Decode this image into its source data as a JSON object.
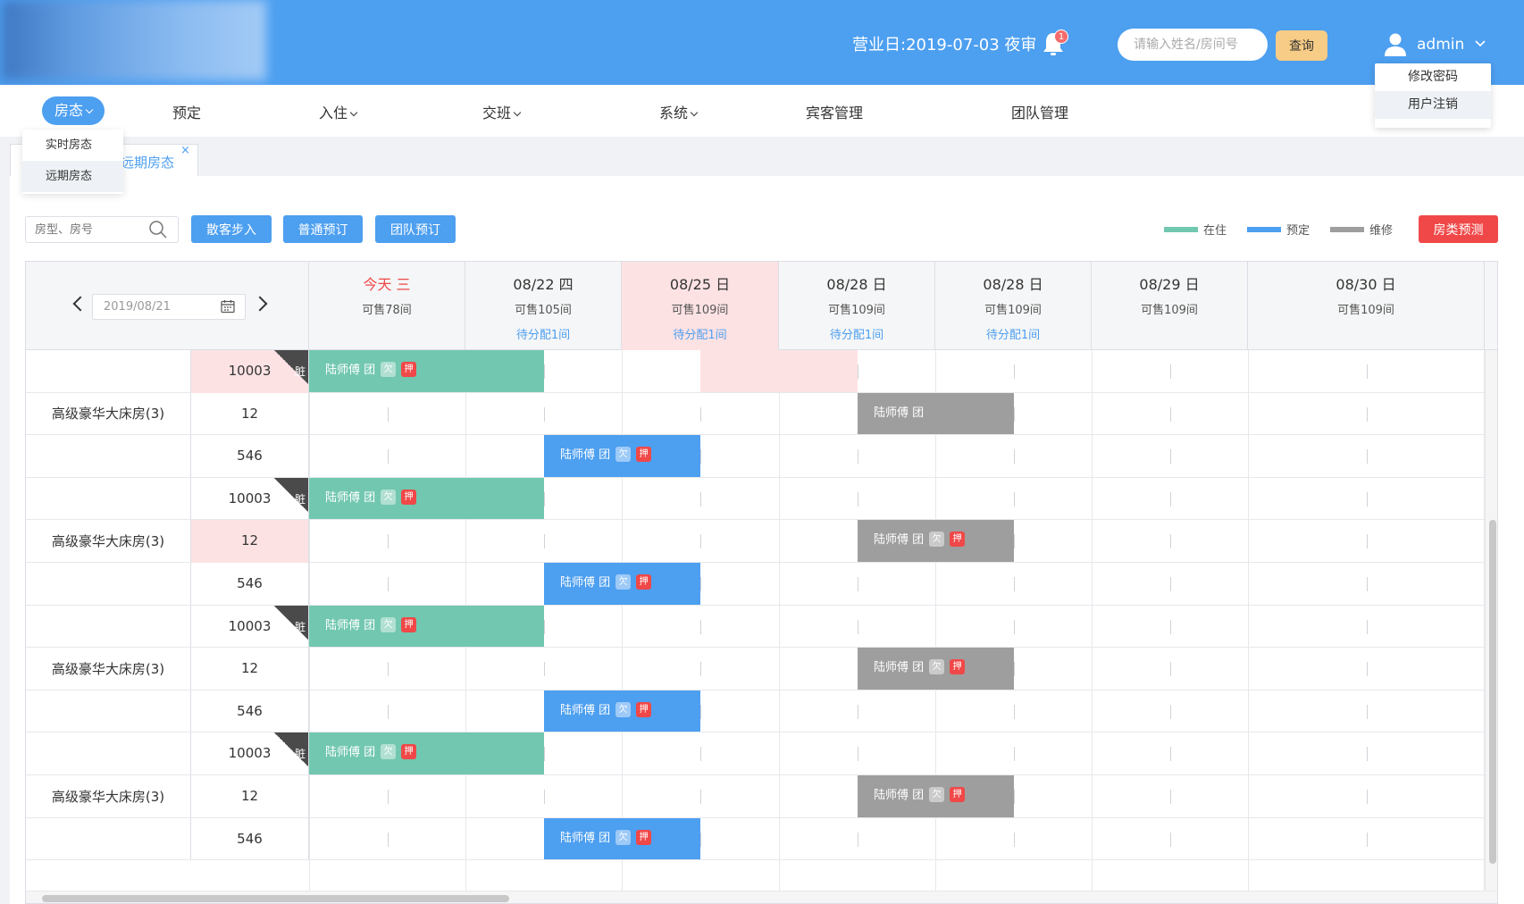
{
  "header": {
    "business_day": "营业日:2019-07-03 夜审",
    "notification_count": "1",
    "search_placeholder": "请输入姓名/房间号",
    "query_label": "查询",
    "username": "admin",
    "user_menu": [
      "修改密码",
      "用户注销"
    ]
  },
  "nav": {
    "active": "房态",
    "items": [
      "预定",
      "入住",
      "交班",
      "系统",
      "宾客管理",
      "团队管理"
    ],
    "submenu": [
      "实时房态",
      "远期房态"
    ]
  },
  "tab": {
    "label": "远期房态",
    "close": "×"
  },
  "toolbar": {
    "filter_placeholder": "房型、房号",
    "walkin": "散客步入",
    "normal_booking": "普通预订",
    "group_booking": "团队预订",
    "legend": [
      {
        "label": "在住",
        "color": "#72c7b0"
      },
      {
        "label": "预定",
        "color": "#4d9ff0"
      },
      {
        "label": "维修",
        "color": "#9e9e9e"
      }
    ],
    "forecast": "房类预测"
  },
  "calendar": {
    "date_value": "2019/08/21",
    "days": [
      {
        "date": "今天 三",
        "sale": "可售78间",
        "assign": "",
        "today": true
      },
      {
        "date": "08/22 四",
        "sale": "可售105间",
        "assign": "待分配1间"
      },
      {
        "date": "08/25 日",
        "sale": "可售109间",
        "assign": "待分配1间",
        "pink": true
      },
      {
        "date": "08/28 日",
        "sale": "可售109间",
        "assign": "待分配1间"
      },
      {
        "date": "08/28 日",
        "sale": "可售109间",
        "assign": "待分配1间"
      },
      {
        "date": "08/29 日",
        "sale": "可售109间",
        "assign": ""
      },
      {
        "date": "08/30 日",
        "sale": "可售109间",
        "assign": ""
      }
    ]
  },
  "groups": [
    {
      "type": "高级豪华大床房(3)",
      "rooms": [
        {
          "no": "10003",
          "dirty": "脏",
          "pink": true
        },
        {
          "no": "12"
        },
        {
          "no": "546"
        }
      ]
    },
    {
      "type": "高级豪华大床房(3)",
      "rooms": [
        {
          "no": "10003",
          "dirty": "脏"
        },
        {
          "no": "12",
          "pink": true
        },
        {
          "no": "546"
        }
      ]
    },
    {
      "type": "高级豪华大床房(3)",
      "rooms": [
        {
          "no": "10003",
          "dirty": "脏"
        },
        {
          "no": "12"
        },
        {
          "no": "546"
        }
      ]
    },
    {
      "type": "高级豪华大床房(3)",
      "rooms": [
        {
          "no": "10003",
          "dirty": "脏"
        },
        {
          "no": "12"
        },
        {
          "no": "546"
        }
      ]
    }
  ],
  "booking": {
    "guest": "陆师傅 团",
    "owe_tag": "欠",
    "deposit_tag": "押"
  }
}
